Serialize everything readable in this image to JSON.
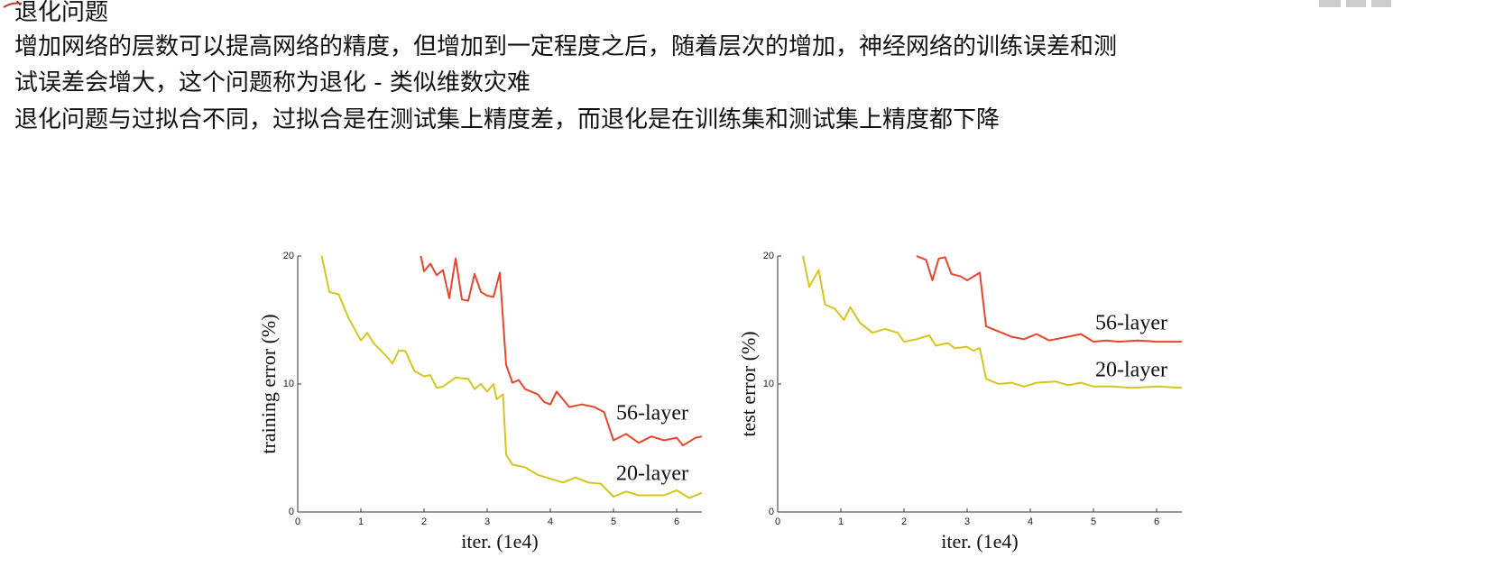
{
  "header": {
    "title": "退化问题"
  },
  "body": {
    "lines": [
      "增加网络的层数可以提高网络的精度，但增加到一定程度之后，随着层次的增加，神经网络的训练误差和测",
      "试误差会增大，这个问题称为退化 - 类似维数灾难",
      "退化问题与过拟合不同，过拟合是在测试集上精度差，而退化是在训练集和测试集上精度都下降"
    ]
  },
  "chart_data": [
    {
      "type": "line",
      "xlabel": "iter. (1e4)",
      "ylabel": "training error (%)",
      "xlim": [
        0,
        6.4
      ],
      "ylim": [
        0,
        20
      ],
      "xticks": [
        0,
        1,
        2,
        3,
        4,
        5,
        6
      ],
      "yticks": [
        0,
        10,
        20
      ],
      "series": [
        {
          "name": "56-layer",
          "color": "#e8452c",
          "x": [
            1.95,
            2.0,
            2.1,
            2.2,
            2.3,
            2.4,
            2.5,
            2.6,
            2.7,
            2.8,
            2.9,
            3.0,
            3.1,
            3.2,
            3.3,
            3.4,
            3.5,
            3.6,
            3.8,
            3.9,
            4.0,
            4.1,
            4.3,
            4.5,
            4.7,
            4.85,
            5.0,
            5.2,
            5.4,
            5.6,
            5.8,
            6.0,
            6.1,
            6.3,
            6.4
          ],
          "values": [
            20,
            18.8,
            19.4,
            18.5,
            18.9,
            16.7,
            19.8,
            16.6,
            16.5,
            18.6,
            17.2,
            16.9,
            16.8,
            18.7,
            11.5,
            10.1,
            10.3,
            9.6,
            9.2,
            8.6,
            8.4,
            9.4,
            8.2,
            8.4,
            8.2,
            7.8,
            5.6,
            6.1,
            5.4,
            5.9,
            5.6,
            5.8,
            5.2,
            5.8,
            5.9
          ]
        },
        {
          "name": "20-layer",
          "color": "#d6c51c",
          "x": [
            0.38,
            0.5,
            0.65,
            0.8,
            1.0,
            1.1,
            1.2,
            1.4,
            1.5,
            1.6,
            1.7,
            1.85,
            2.0,
            2.1,
            2.2,
            2.3,
            2.5,
            2.7,
            2.8,
            2.9,
            3.0,
            3.1,
            3.15,
            3.25,
            3.3,
            3.4,
            3.6,
            3.8,
            4.0,
            4.2,
            4.4,
            4.6,
            4.8,
            5.0,
            5.2,
            5.4,
            5.8,
            6.0,
            6.2,
            6.4
          ],
          "values": [
            20,
            17.2,
            17,
            15.2,
            13.4,
            14,
            13.2,
            12.2,
            11.6,
            12.6,
            12.6,
            11,
            10.6,
            10.7,
            9.7,
            9.8,
            10.5,
            10.4,
            9.6,
            10,
            9.4,
            10,
            8.8,
            9.2,
            4.5,
            3.7,
            3.5,
            2.9,
            2.6,
            2.3,
            2.7,
            2.3,
            2.2,
            1.2,
            1.6,
            1.3,
            1.3,
            1.7,
            1.1,
            1.5
          ]
        }
      ]
    },
    {
      "type": "line",
      "xlabel": "iter. (1e4)",
      "ylabel": "test error (%)",
      "xlim": [
        0,
        6.4
      ],
      "ylim": [
        0,
        20
      ],
      "xticks": [
        0,
        1,
        2,
        3,
        4,
        5,
        6
      ],
      "yticks": [
        0,
        10,
        20
      ],
      "series": [
        {
          "name": "56-layer",
          "color": "#e8452c",
          "x": [
            2.2,
            2.35,
            2.45,
            2.55,
            2.65,
            2.75,
            2.9,
            3.0,
            3.2,
            3.3,
            3.5,
            3.7,
            3.9,
            4.1,
            4.3,
            4.6,
            4.8,
            5.0,
            5.2,
            5.4,
            5.7,
            6.0,
            6.4
          ],
          "values": [
            20,
            19.7,
            18.1,
            19.8,
            19.9,
            18.6,
            18.4,
            18.1,
            18.7,
            14.5,
            14.1,
            13.7,
            13.5,
            13.9,
            13.4,
            13.7,
            13.9,
            13.3,
            13.4,
            13.3,
            13.4,
            13.3,
            13.3
          ]
        },
        {
          "name": "20-layer",
          "color": "#d6c51c",
          "x": [
            0.4,
            0.5,
            0.65,
            0.75,
            0.9,
            1.05,
            1.15,
            1.3,
            1.5,
            1.7,
            1.9,
            2.0,
            2.2,
            2.4,
            2.5,
            2.7,
            2.8,
            3.0,
            3.1,
            3.2,
            3.3,
            3.5,
            3.7,
            3.9,
            4.1,
            4.4,
            4.6,
            4.8,
            5.0,
            5.3,
            5.6,
            6.0,
            6.4
          ],
          "values": [
            20,
            17.6,
            18.9,
            16.2,
            15.9,
            15,
            16,
            14.8,
            14,
            14.3,
            14,
            13.3,
            13.5,
            13.8,
            13,
            13.2,
            12.8,
            12.9,
            12.6,
            12.8,
            10.4,
            10,
            10.1,
            9.8,
            10.1,
            10.2,
            9.9,
            10.1,
            9.8,
            9.8,
            9.7,
            9.8,
            9.7
          ]
        }
      ]
    }
  ]
}
